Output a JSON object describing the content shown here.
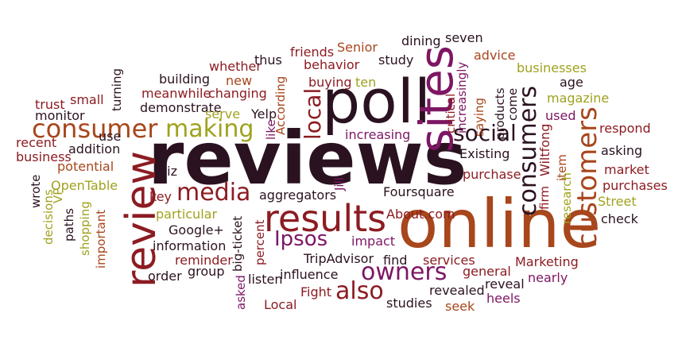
{
  "palette": {
    "dark": "#2b1220",
    "purple": "#7d1664",
    "rust": "#a8461c",
    "olive": "#9fa21e",
    "crimson": "#8c1c22",
    "brown": "#5a2a16"
  },
  "words": [
    {
      "text": "reviews",
      "color": "dark"
    },
    {
      "text": "online",
      "color": "rust"
    },
    {
      "text": "poll",
      "color": "dark"
    },
    {
      "text": "sites",
      "color": "purple"
    },
    {
      "text": "review",
      "color": "crimson"
    },
    {
      "text": "results",
      "color": "crimson"
    },
    {
      "text": "consumer",
      "color": "rust"
    },
    {
      "text": "making",
      "color": "olive"
    },
    {
      "text": "media",
      "color": "crimson"
    },
    {
      "text": "customers",
      "color": "rust"
    },
    {
      "text": "consumers",
      "color": "dark"
    },
    {
      "text": "social",
      "color": "dark"
    },
    {
      "text": "owners",
      "color": "purple"
    },
    {
      "text": "also",
      "color": "crimson"
    },
    {
      "text": "Ipsos",
      "color": "purple"
    },
    {
      "text": "local",
      "color": "crimson"
    },
    {
      "text": "friends",
      "color": "crimson"
    },
    {
      "text": "Senior",
      "color": "rust"
    },
    {
      "text": "dining",
      "color": "dark"
    },
    {
      "text": "seven",
      "color": "dark"
    },
    {
      "text": "whether",
      "color": "crimson"
    },
    {
      "text": "thus",
      "color": "dark"
    },
    {
      "text": "behavior",
      "color": "crimson"
    },
    {
      "text": "study",
      "color": "dark"
    },
    {
      "text": "advice",
      "color": "rust"
    },
    {
      "text": "businesses",
      "color": "olive"
    },
    {
      "text": "new",
      "color": "rust"
    },
    {
      "text": "building",
      "color": "dark"
    },
    {
      "text": "buying",
      "color": "crimson"
    },
    {
      "text": "ten",
      "color": "olive"
    },
    {
      "text": "age",
      "color": "dark"
    },
    {
      "text": "meanwhile",
      "color": "crimson"
    },
    {
      "text": "changing",
      "color": "crimson"
    },
    {
      "text": "magazine",
      "color": "olive"
    },
    {
      "text": "small",
      "color": "crimson"
    },
    {
      "text": "trust",
      "color": "crimson"
    },
    {
      "text": "demonstrate",
      "color": "dark"
    },
    {
      "text": "monitor",
      "color": "dark"
    },
    {
      "text": "serve",
      "color": "olive"
    },
    {
      "text": "Yelp",
      "color": "dark"
    },
    {
      "text": "like",
      "color": "purple"
    },
    {
      "text": "used",
      "color": "purple"
    },
    {
      "text": "respond",
      "color": "crimson"
    },
    {
      "text": "use",
      "color": "dark"
    },
    {
      "text": "recent",
      "color": "crimson"
    },
    {
      "text": "addition",
      "color": "dark"
    },
    {
      "text": "increasing",
      "color": "purple"
    },
    {
      "text": "asking",
      "color": "dark"
    },
    {
      "text": "business",
      "color": "crimson"
    },
    {
      "text": "Existing",
      "color": "dark"
    },
    {
      "text": "potential",
      "color": "rust"
    },
    {
      "text": "biz",
      "color": "dark"
    },
    {
      "text": "purchase",
      "color": "crimson"
    },
    {
      "text": "market",
      "color": "crimson"
    },
    {
      "text": "OpenTable",
      "color": "olive"
    },
    {
      "text": "key",
      "color": "crimson"
    },
    {
      "text": "aggregators",
      "color": "dark"
    },
    {
      "text": "Foursquare",
      "color": "dark"
    },
    {
      "text": "purchases",
      "color": "crimson"
    },
    {
      "text": "wrote",
      "color": "dark"
    },
    {
      "text": "VP",
      "color": "olive"
    },
    {
      "text": "Street",
      "color": "olive"
    },
    {
      "text": "particular",
      "color": "olive"
    },
    {
      "text": "check",
      "color": "dark"
    },
    {
      "text": "About.com",
      "color": "crimson"
    },
    {
      "text": "Google+",
      "color": "dark"
    },
    {
      "text": "paths",
      "color": "dark"
    },
    {
      "text": "information",
      "color": "dark"
    },
    {
      "text": "impact",
      "color": "purple"
    },
    {
      "text": "percent",
      "color": "crimson"
    },
    {
      "text": "reminder",
      "color": "crimson"
    },
    {
      "text": "find",
      "color": "dark"
    },
    {
      "text": "services",
      "color": "crimson"
    },
    {
      "text": "Marketing",
      "color": "crimson"
    },
    {
      "text": "TripAdvisor",
      "color": "dark"
    },
    {
      "text": "general",
      "color": "crimson"
    },
    {
      "text": "order",
      "color": "dark"
    },
    {
      "text": "group",
      "color": "dark"
    },
    {
      "text": "influence",
      "color": "dark"
    },
    {
      "text": "nearly",
      "color": "purple"
    },
    {
      "text": "listen",
      "color": "dark"
    },
    {
      "text": "reveal",
      "color": "dark"
    },
    {
      "text": "Fight",
      "color": "crimson"
    },
    {
      "text": "revealed",
      "color": "dark"
    },
    {
      "text": "heels",
      "color": "purple"
    },
    {
      "text": "Local",
      "color": "crimson"
    },
    {
      "text": "studies",
      "color": "dark"
    },
    {
      "text": "seek",
      "color": "rust"
    },
    {
      "text": "turning",
      "color": "dark"
    },
    {
      "text": "According",
      "color": "rust"
    },
    {
      "text": "critical",
      "color": "crimson"
    },
    {
      "text": "increasingly",
      "color": "purple"
    },
    {
      "text": "saying",
      "color": "rust"
    },
    {
      "text": "products",
      "color": "dark"
    },
    {
      "text": "come",
      "color": "dark"
    },
    {
      "text": "Wiltfong",
      "color": "crimson"
    },
    {
      "text": "item",
      "color": "rust"
    },
    {
      "text": "research",
      "color": "olive"
    },
    {
      "text": "firm",
      "color": "crimson"
    },
    {
      "text": "Jill",
      "color": "purple"
    },
    {
      "text": "big-ticket",
      "color": "dark"
    },
    {
      "text": "important",
      "color": "rust"
    },
    {
      "text": "shopping",
      "color": "olive"
    },
    {
      "text": "decisions",
      "color": "olive"
    },
    {
      "text": "asked",
      "color": "purple"
    }
  ]
}
